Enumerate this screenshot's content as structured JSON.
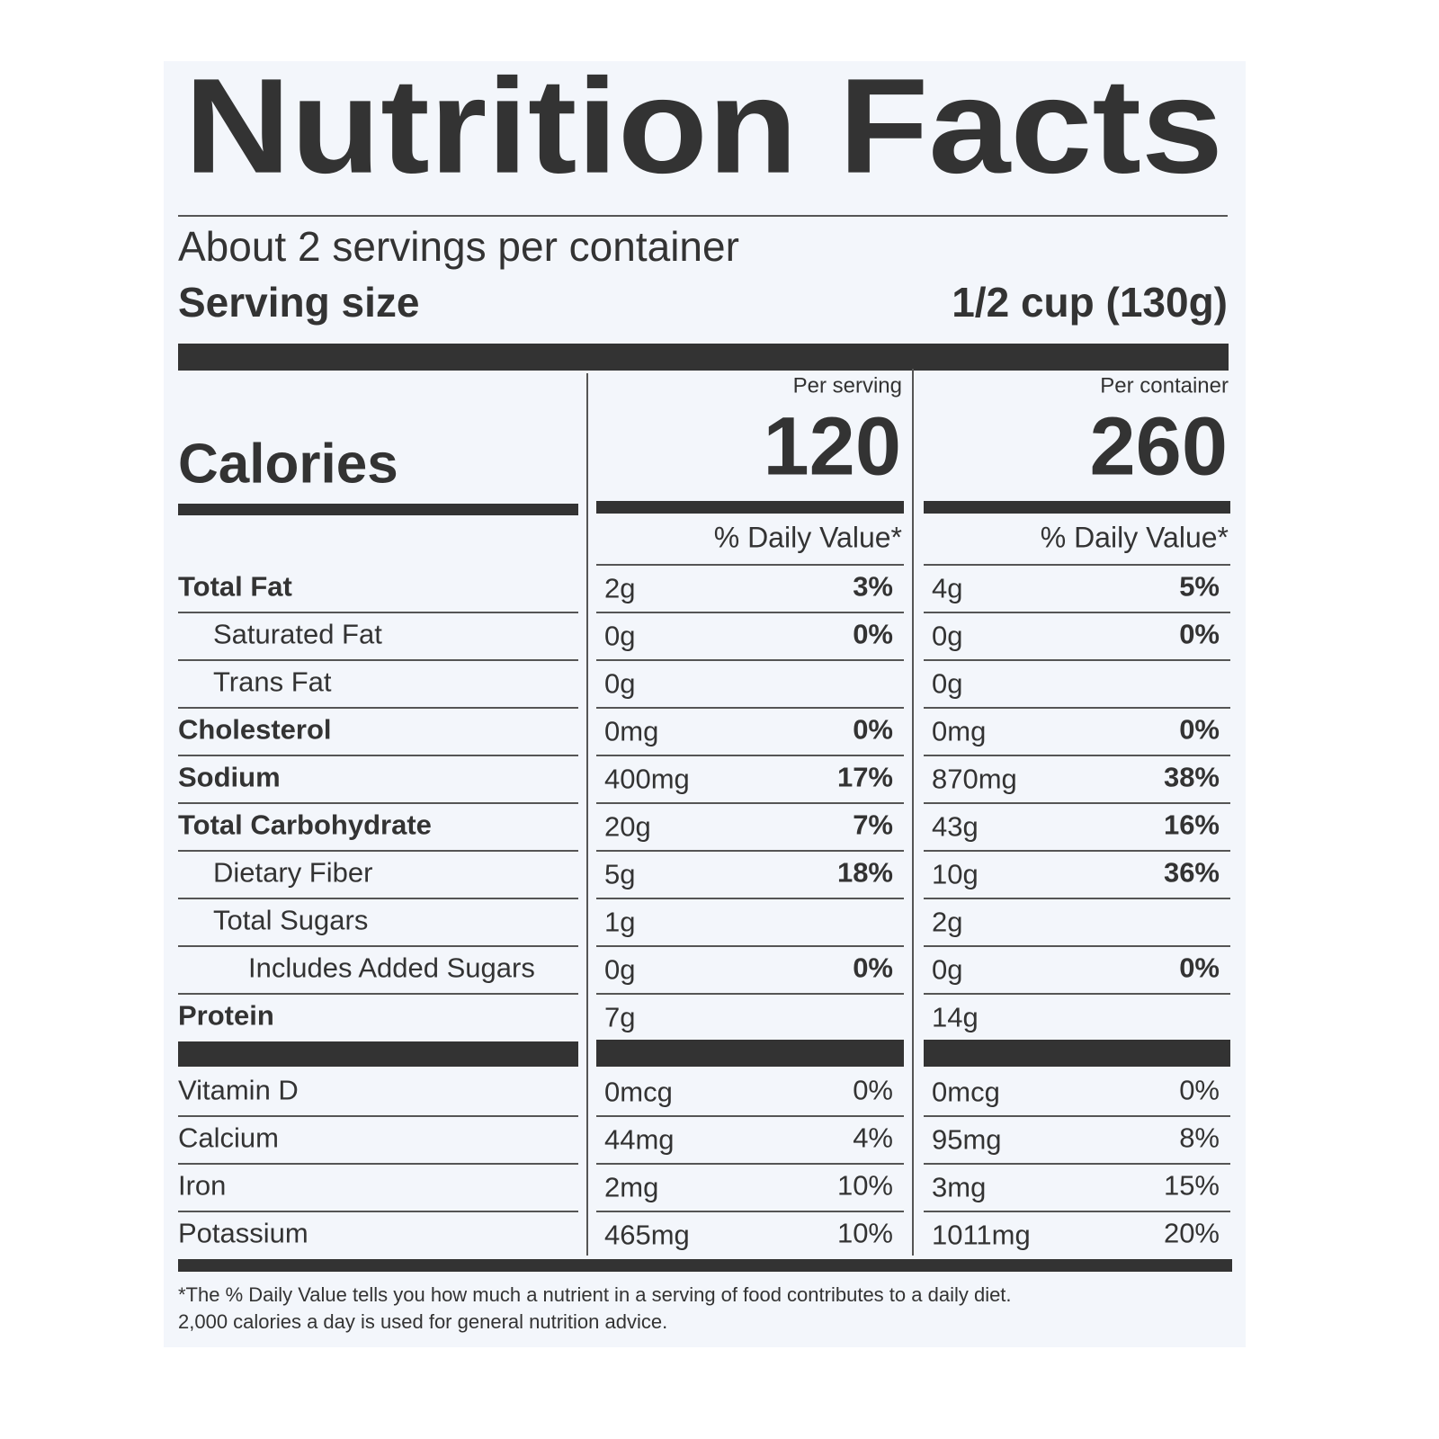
{
  "title": "Nutrition Facts",
  "servings": "About 2 servings per container",
  "serving_size": {
    "label": "Serving size",
    "value": "1/2 cup (130g)"
  },
  "calories_label": "Calories",
  "columns": [
    {
      "heading": "Per serving",
      "calories": "120",
      "dv_heading": "% Daily Value*"
    },
    {
      "heading": "Per container",
      "calories": "260",
      "dv_heading": "% Daily Value*"
    }
  ],
  "nutrients": [
    {
      "name": "Total Fat",
      "bold": true,
      "indent": 0,
      "values": [
        {
          "amount": "2g",
          "dv": "3%"
        },
        {
          "amount": "4g",
          "dv": "5%"
        }
      ]
    },
    {
      "name": "Saturated Fat",
      "bold": false,
      "indent": 1,
      "values": [
        {
          "amount": "0g",
          "dv": "0%"
        },
        {
          "amount": "0g",
          "dv": "0%"
        }
      ]
    },
    {
      "name": "Trans Fat",
      "bold": false,
      "indent": 1,
      "values": [
        {
          "amount": "0g"
        },
        {
          "amount": "0g"
        }
      ]
    },
    {
      "name": "Cholesterol",
      "bold": true,
      "indent": 0,
      "values": [
        {
          "amount": "0mg",
          "dv": "0%"
        },
        {
          "amount": "0mg",
          "dv": "0%"
        }
      ]
    },
    {
      "name": "Sodium",
      "bold": true,
      "indent": 0,
      "values": [
        {
          "amount": "400mg",
          "dv": "17%"
        },
        {
          "amount": "870mg",
          "dv": "38%"
        }
      ]
    },
    {
      "name": "Total Carbohydrate",
      "bold": true,
      "indent": 0,
      "values": [
        {
          "amount": "20g",
          "dv": "7%"
        },
        {
          "amount": "43g",
          "dv": "16%"
        }
      ]
    },
    {
      "name": "Dietary Fiber",
      "bold": false,
      "indent": 1,
      "values": [
        {
          "amount": "5g",
          "dv": "18%"
        },
        {
          "amount": "10g",
          "dv": "36%"
        }
      ]
    },
    {
      "name": "Total Sugars",
      "bold": false,
      "indent": 1,
      "values": [
        {
          "amount": "1g"
        },
        {
          "amount": "2g"
        }
      ]
    },
    {
      "name": "Includes Added Sugars",
      "bold": false,
      "indent": 2,
      "values": [
        {
          "amount": "0g",
          "dv": "0%"
        },
        {
          "amount": "0g",
          "dv": "0%"
        }
      ]
    },
    {
      "name": "Protein",
      "bold": true,
      "indent": 0,
      "values": [
        {
          "amount": "7g"
        },
        {
          "amount": "14g"
        }
      ]
    }
  ],
  "vitamins": [
    {
      "name": "Vitamin D",
      "values": [
        {
          "amount": "0mcg",
          "dv": "0%"
        },
        {
          "amount": "0mcg",
          "dv": "0%"
        }
      ]
    },
    {
      "name": "Calcium",
      "values": [
        {
          "amount": "44mg",
          "dv": "4%"
        },
        {
          "amount": "95mg",
          "dv": "8%"
        }
      ]
    },
    {
      "name": "Iron",
      "values": [
        {
          "amount": "2mg",
          "dv": "10%"
        },
        {
          "amount": "3mg",
          "dv": "15%"
        }
      ]
    },
    {
      "name": "Potassium",
      "values": [
        {
          "amount": "465mg",
          "dv": "10%"
        },
        {
          "amount": "1011mg",
          "dv": "20%"
        }
      ]
    }
  ],
  "footnote": [
    "*The % Daily Value tells you how much a nutrient in a serving of food contributes to a daily diet.",
    "2,000 calories a day is used for general nutrition advice."
  ]
}
